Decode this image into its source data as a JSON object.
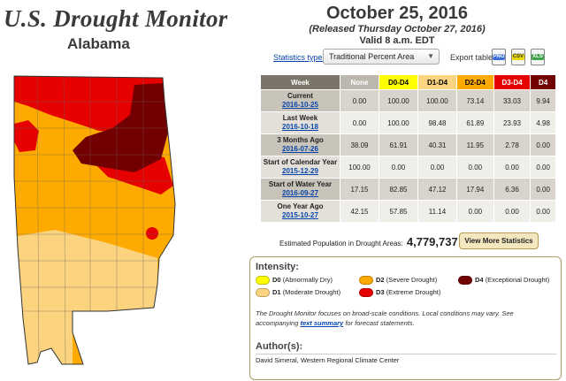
{
  "header": {
    "site_title": "U.S. Drought Monitor",
    "state": "Alabama",
    "date": "October 25, 2016",
    "released": "(Released Thursday October 27, 2016)",
    "valid": "Valid 8 a.m. EDT"
  },
  "controls": {
    "stats_type_label": "Statistics type:",
    "stats_type_value": "Traditional Percent Area",
    "export_label": "Export table:",
    "export_formats": [
      "PNG",
      "CSV",
      "XLS"
    ]
  },
  "table": {
    "headers": [
      "Week",
      "None",
      "D0-D4",
      "D1-D4",
      "D2-D4",
      "D3-D4",
      "D4"
    ],
    "header_colors": [
      "#7b7468",
      "#bdb8ae",
      "#ffff00",
      "#fcd37f",
      "#ffaa00",
      "#e60000",
      "#730000"
    ],
    "rows": [
      {
        "label": "Current",
        "date": "2016-10-25",
        "values": [
          "0.00",
          "100.00",
          "100.00",
          "73.14",
          "33.03",
          "9.94"
        ]
      },
      {
        "label": "Last Week",
        "date": "2016-10-18",
        "values": [
          "0.00",
          "100.00",
          "98.48",
          "61.89",
          "23.93",
          "4.98"
        ]
      },
      {
        "label": "3 Months Ago",
        "date": "2016-07-26",
        "values": [
          "38.09",
          "61.91",
          "40.31",
          "11.95",
          "2.78",
          "0.00"
        ]
      },
      {
        "label": "Start of Calendar Year",
        "date": "2015-12-29",
        "values": [
          "100.00",
          "0.00",
          "0.00",
          "0.00",
          "0.00",
          "0.00"
        ]
      },
      {
        "label": "Start of Water Year",
        "date": "2016-09-27",
        "values": [
          "17.15",
          "82.85",
          "47.12",
          "17.94",
          "6.36",
          "0.00"
        ]
      },
      {
        "label": "One Year Ago",
        "date": "2015-10-27",
        "values": [
          "42.15",
          "57.85",
          "11.14",
          "0.00",
          "0.00",
          "0.00"
        ]
      }
    ]
  },
  "population": {
    "label": "Estimated Population in Drought Areas:",
    "value": "4,779,737"
  },
  "more_stats_button": "View More Statistics",
  "legend": {
    "title": "Intensity:",
    "items": [
      {
        "code": "D0",
        "text": "(Abnormally Dry)",
        "color": "#ffff00"
      },
      {
        "code": "D1",
        "text": "(Moderate Drought)",
        "color": "#fcd37f"
      },
      {
        "code": "D2",
        "text": "(Severe Drought)",
        "color": "#ffaa00"
      },
      {
        "code": "D3",
        "text": "(Extreme Drought)",
        "color": "#e60000"
      },
      {
        "code": "D4",
        "text": "(Exceptional Drought)",
        "color": "#730000"
      }
    ],
    "disclaimer_before": "The Drought Monitor focuses on broad-scale conditions. Local conditions may vary. See accompanying ",
    "disclaimer_link": "text summary",
    "disclaimer_after": " for forecast statements."
  },
  "author": {
    "title": "Author(s):",
    "name": "David Simeral, Western Regional Climate Center"
  }
}
